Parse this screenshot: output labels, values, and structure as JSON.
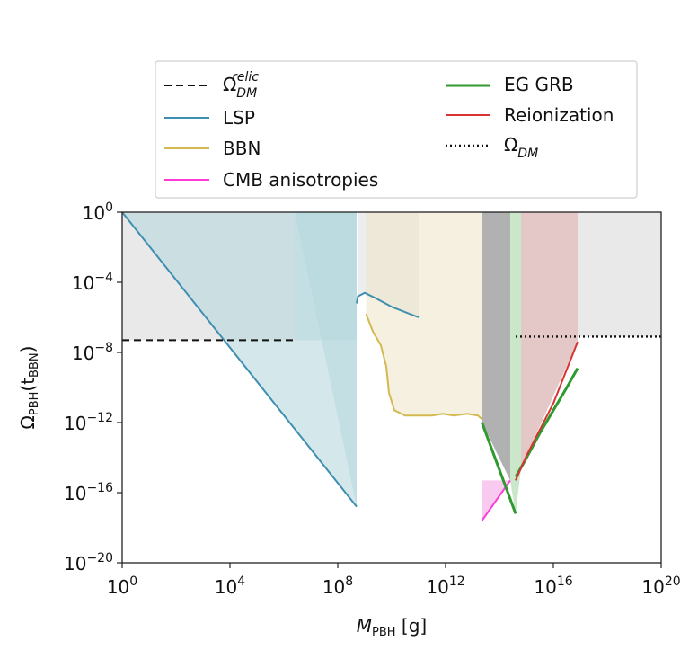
{
  "chart_data": {
    "type": "line",
    "title": "",
    "xlabel": {
      "main": "M",
      "sub": "PBH",
      "unit": " [g]"
    },
    "ylabel": {
      "main": "Ω",
      "sub": "PBH",
      "arg_open": "(t",
      "arg_sub": "BBN",
      "arg_close": ")"
    },
    "x_scale": "log10",
    "y_scale": "log10",
    "xlim_exp": [
      0,
      20
    ],
    "ylim_exp": [
      -20,
      0
    ],
    "x_ticks": [
      {
        "exp": 0,
        "base": "10",
        "sup": "0"
      },
      {
        "exp": 4,
        "base": "10",
        "sup": "4"
      },
      {
        "exp": 8,
        "base": "10",
        "sup": "8"
      },
      {
        "exp": 12,
        "base": "10",
        "sup": "12"
      },
      {
        "exp": 16,
        "base": "10",
        "sup": "16"
      },
      {
        "exp": 20,
        "base": "10",
        "sup": "20"
      }
    ],
    "y_ticks": [
      {
        "exp": 0,
        "base": "10",
        "sup": "0"
      },
      {
        "exp": -4,
        "base": "10",
        "sup": "−4"
      },
      {
        "exp": -8,
        "base": "10",
        "sup": "−8"
      },
      {
        "exp": -12,
        "base": "10",
        "sup": "−12"
      },
      {
        "exp": -16,
        "base": "10",
        "sup": "−16"
      },
      {
        "exp": -20,
        "base": "10",
        "sup": "−20"
      }
    ],
    "colors": {
      "relic": "#111111",
      "lsp": "#3f8fb0",
      "lsp_fill": "#b7d8df",
      "bbn": "#d4b951",
      "bbn_fill": "#ece4c6",
      "cmb": "#ff3ad6",
      "cmb_fill": "#f3a6e6",
      "eggrb": "#2f9a2f",
      "eggrb_fill": "#9ed39e",
      "reion": "#d83333",
      "reion_fill": "#cd9a9a",
      "dm": "#111111",
      "excluded_fill": "#d7d7d7",
      "dark_band": "#a9a9a9"
    },
    "series": [
      {
        "name": "LSP",
        "key": "lsp",
        "x_exp": [
          0,
          8.7
        ],
        "y_exp": [
          0,
          -16.8
        ]
      },
      {
        "name": "LSP",
        "key": "lsp",
        "x_exp": [
          8.7,
          8.75,
          9.0,
          9.4,
          10.0,
          11.0
        ],
        "y_exp": [
          -5.2,
          -4.8,
          -4.6,
          -4.9,
          -5.4,
          -6.0
        ]
      },
      {
        "name": "BBN",
        "key": "bbn",
        "x_exp": [
          9.05,
          9.3,
          9.6,
          9.8,
          9.9,
          10.1,
          10.5,
          11.0,
          11.5,
          11.9,
          12.3,
          12.8,
          13.2,
          13.35
        ],
        "y_exp": [
          -5.8,
          -6.8,
          -7.6,
          -8.8,
          -10.3,
          -11.3,
          -11.6,
          -11.6,
          -11.6,
          -11.5,
          -11.6,
          -11.5,
          -11.6,
          -11.8
        ]
      },
      {
        "name": "CMB anisotropies",
        "key": "cmb",
        "x_exp": [
          13.35,
          14.4
        ],
        "y_exp": [
          -17.6,
          -15.3
        ]
      },
      {
        "name": "EG GRB",
        "key": "eggrb",
        "x_exp": [
          13.35,
          14.6
        ],
        "y_exp": [
          -12.0,
          -17.2
        ]
      },
      {
        "name": "EG GRB",
        "key": "eggrb",
        "x_exp": [
          14.6,
          14.9,
          15.5,
          16.5,
          16.9
        ],
        "y_exp": [
          -15.1,
          -14.3,
          -12.6,
          -10.0,
          -8.9
        ]
      },
      {
        "name": "Reionization",
        "key": "reion",
        "x_exp": [
          14.6,
          15.0,
          16.0,
          16.9
        ],
        "y_exp": [
          -15.3,
          -13.9,
          -10.9,
          -7.4
        ]
      }
    ],
    "reference_lines": [
      {
        "name": "Ω_DM^relic",
        "key": "relic",
        "style": "dashed",
        "x_exp": [
          0,
          6.4
        ],
        "y_exp": -7.3
      },
      {
        "name": "Ω_DM",
        "key": "dm",
        "style": "dotted",
        "x_exp": [
          14.6,
          20
        ],
        "y_exp": -7.1
      }
    ],
    "legend": {
      "position": "top",
      "entries": [
        {
          "key": "relic",
          "style": "dashed",
          "symbol": "Ω",
          "sub": "DM",
          "sup": "relic"
        },
        {
          "key": "lsp",
          "style": "solid",
          "label": "LSP"
        },
        {
          "key": "bbn",
          "style": "solid",
          "label": "BBN"
        },
        {
          "key": "cmb",
          "style": "solid",
          "label": "CMB anisotropies"
        },
        {
          "key": "eggrb",
          "style": "solid",
          "label": "EG GRB"
        },
        {
          "key": "reion",
          "style": "solid",
          "label": "Reionization"
        },
        {
          "key": "dm",
          "style": "dotted",
          "symbol": "Ω",
          "sub": "DM"
        }
      ]
    },
    "regions": [
      {
        "key": "excluded_fill",
        "opacity": 0.55,
        "x_exp": [
          0,
          6.4,
          6.4,
          0
        ],
        "y_exp": [
          0,
          0,
          -7.3,
          -7.3
        ]
      },
      {
        "key": "lsp_fill",
        "opacity": 0.6,
        "x_exp": [
          0,
          6.4,
          6.4,
          8.7,
          8.7
        ],
        "y_exp": [
          0,
          0,
          -7.3,
          -7.3,
          0
        ]
      },
      {
        "key": "lsp_fill",
        "opacity": 0.6,
        "x_exp": [
          6.4,
          8.7,
          8.7
        ],
        "y_exp": [
          0,
          0,
          -16.8
        ]
      },
      {
        "key": "lsp_fill",
        "opacity": 0.6,
        "x_exp": [
          0,
          8.7,
          8.7
        ],
        "y_exp": [
          0,
          -16.8,
          0
        ]
      },
      {
        "key": "excluded_fill",
        "opacity": 0.45,
        "x_exp": [
          8.75,
          11.0,
          11.0,
          10.0,
          9.4,
          9.0,
          8.75
        ],
        "y_exp": [
          0,
          0,
          -6.0,
          -5.4,
          -4.9,
          -4.6,
          -4.8
        ]
      },
      {
        "key": "bbn_fill",
        "opacity": 0.55,
        "x_exp": [
          9.05,
          13.35,
          13.35,
          13.2,
          12.8,
          12.3,
          11.9,
          11.5,
          11.0,
          10.5,
          10.1,
          9.9,
          9.8,
          9.6,
          9.3,
          9.05
        ],
        "y_exp": [
          0,
          0,
          -11.8,
          -11.6,
          -11.5,
          -11.6,
          -11.5,
          -11.6,
          -11.6,
          -11.6,
          -11.3,
          -10.3,
          -8.8,
          -7.6,
          -6.8,
          -5.8
        ]
      },
      {
        "key": "cmb_fill",
        "opacity": 0.6,
        "x_exp": [
          13.35,
          14.4,
          14.4,
          13.35
        ],
        "y_exp": [
          -15.3,
          -15.3,
          -15.3,
          -17.6
        ]
      },
      {
        "key": "dark_band",
        "opacity": 0.9,
        "x_exp": [
          13.35,
          14.4,
          14.4,
          13.35
        ],
        "y_exp": [
          0,
          0,
          -15.3,
          -12.0
        ]
      },
      {
        "key": "eggrb_fill",
        "opacity": 0.55,
        "x_exp": [
          14.4,
          14.8,
          14.8,
          14.6,
          14.4
        ],
        "y_exp": [
          0,
          0,
          -14.6,
          -17.2,
          -15.3
        ]
      },
      {
        "key": "reion_fill",
        "opacity": 0.55,
        "x_exp": [
          14.8,
          16.9,
          16.9,
          14.8
        ],
        "y_exp": [
          0,
          0,
          -7.4,
          -14.6
        ]
      },
      {
        "key": "excluded_fill",
        "opacity": 0.55,
        "x_exp": [
          16.9,
          20,
          20,
          16.9
        ],
        "y_exp": [
          0,
          0,
          -7.1,
          -7.1
        ]
      }
    ]
  }
}
